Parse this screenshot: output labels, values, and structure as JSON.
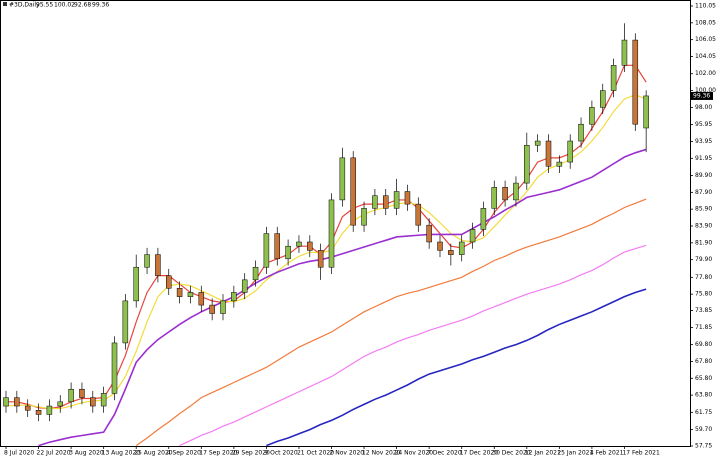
{
  "chart_data": {
    "type": "candlestick",
    "symbol": "#3D,Daily",
    "categories": [
      "8 Jul 2020",
      null,
      null,
      "22 Jul 2020",
      null,
      null,
      "3 Aug 2020",
      null,
      null,
      "13 Aug 2020",
      null,
      null,
      "25 Aug 2020",
      null,
      null,
      "4 Sep 2020",
      null,
      null,
      "17 Sep 2020",
      null,
      null,
      "29 Sep 2020",
      null,
      null,
      "9 Oct 2020",
      null,
      null,
      "21 Oct 2020",
      null,
      null,
      "2 Nov 2020",
      null,
      null,
      "12 Nov 2020",
      null,
      null,
      "24 Nov 2020",
      null,
      null,
      "7 Dec 2020",
      null,
      null,
      "17 Dec 2020",
      null,
      null,
      "30 Dec 2020",
      null,
      null,
      "12 Jan 2021",
      null,
      null,
      "25 Jan 2021",
      null,
      null,
      "4 Feb 2021",
      null,
      null,
      "17 Feb 2021",
      null,
      null
    ],
    "candles": {
      "open": [
        62.5,
        63.5,
        62.5,
        62,
        61.5,
        62.5,
        63,
        64.5,
        63.5,
        62.5,
        64,
        70,
        75,
        79,
        80.5,
        78,
        76.5,
        75.5,
        76,
        74.5,
        73.5,
        75,
        76,
        77.5,
        79,
        83,
        80,
        81.5,
        82,
        81,
        79,
        87,
        92,
        84,
        86,
        87.5,
        86,
        88,
        86.5,
        84,
        82,
        81,
        80.5,
        82,
        83.5,
        86,
        88.5,
        87,
        89,
        93.5,
        94,
        91,
        91.5,
        94,
        96,
        98,
        100,
        103,
        106,
        95.55
      ],
      "high": [
        64.3,
        64.3,
        63.3,
        62.8,
        63.3,
        63.8,
        65.3,
        65.3,
        64.3,
        64.8,
        70.8,
        75.8,
        80.5,
        81.3,
        81.3,
        78.8,
        77.3,
        76.8,
        76.8,
        75.3,
        75.8,
        76.8,
        78.3,
        79.8,
        83.8,
        83.8,
        82.3,
        82.8,
        82.8,
        81.8,
        87.8,
        93.2,
        92.8,
        86.8,
        88.3,
        88.3,
        89.5,
        88.8,
        87.3,
        84.8,
        82.8,
        81.8,
        82.8,
        84.3,
        86.8,
        89.3,
        89.3,
        89.8,
        95,
        94.8,
        94.8,
        92.3,
        94.8,
        96.8,
        98.8,
        100.8,
        103.8,
        108,
        106.8,
        100.02
      ],
      "low": [
        61.7,
        61.7,
        61.2,
        60.7,
        60.7,
        61.7,
        62.2,
        62.7,
        61.7,
        61.7,
        63.2,
        69.2,
        74.2,
        78.2,
        77.2,
        75.7,
        74.7,
        74.7,
        73.7,
        72.7,
        72.7,
        74.2,
        75.2,
        76.7,
        78.2,
        79.2,
        79.2,
        80.7,
        80.2,
        77.5,
        78.2,
        86.2,
        83.2,
        83.2,
        85.2,
        85.2,
        85.2,
        85.7,
        83.2,
        81.2,
        80.2,
        79.2,
        79.7,
        81.2,
        82.7,
        85.2,
        86.2,
        86.2,
        88.2,
        92.7,
        90.2,
        90.2,
        90.7,
        93.2,
        95.2,
        97.2,
        99.2,
        102.2,
        95.2,
        92.68
      ],
      "close": [
        63.5,
        62.5,
        62,
        61.5,
        62.5,
        63,
        64.5,
        63.5,
        62.5,
        64,
        70,
        75,
        79,
        80.5,
        78,
        76.5,
        75.5,
        76,
        74.5,
        73.5,
        75,
        76,
        77.5,
        79,
        83,
        80,
        81.5,
        82,
        81,
        79,
        87,
        92,
        84,
        86,
        87.5,
        86,
        88,
        86.5,
        84,
        82,
        81,
        80.5,
        82,
        83.5,
        86,
        88.5,
        87,
        89,
        93.5,
        94,
        91,
        91.5,
        94,
        96,
        98,
        100,
        103,
        106,
        96,
        99.36
      ],
      "up_color": "#8fc04f",
      "down_color": "#c8753a"
    },
    "series": [
      {
        "color": "#e8443c",
        "values": [
          63,
          63,
          62.7,
          62.3,
          62.2,
          62.4,
          63,
          63.4,
          63.4,
          63.5,
          65.5,
          68.5,
          72.5,
          76,
          78,
          78,
          77,
          76,
          75.5,
          75,
          74.8,
          75,
          76,
          77.5,
          79.5,
          80,
          80.5,
          81.5,
          81.5,
          80.5,
          82,
          85,
          86,
          86.5,
          86.5,
          86.5,
          87,
          87,
          86,
          84.5,
          83,
          81.5,
          81.3,
          82,
          83.5,
          85.5,
          87,
          88,
          89.5,
          91.5,
          92,
          92,
          92.5,
          93.5,
          95.5,
          97.5,
          100,
          103,
          103,
          101
        ]
      },
      {
        "color": "#f2dc3c",
        "values": [
          62.5,
          62.6,
          62.6,
          62.4,
          62.2,
          62.2,
          62.5,
          62.9,
          63.1,
          63.2,
          64,
          66,
          69,
          72.5,
          75.5,
          76.8,
          77,
          76.8,
          76.2,
          75.6,
          75,
          74.9,
          75.3,
          76.2,
          77.5,
          78.5,
          79.5,
          80.3,
          80.8,
          80.7,
          81,
          83,
          84.5,
          85.3,
          85.8,
          86.1,
          86.5,
          86.7,
          86.4,
          85.5,
          84.3,
          83,
          82.2,
          82,
          82.5,
          83.8,
          85.2,
          86.5,
          88,
          89.7,
          90.7,
          91.2,
          91.8,
          92.7,
          94,
          95.6,
          97.5,
          99,
          99.5,
          99
        ]
      },
      {
        "color": "#9a2fd0",
        "values": [
          null,
          null,
          null,
          57.8,
          58.2,
          58.5,
          58.8,
          59,
          59.2,
          59.4,
          61.5,
          64.5,
          67.7,
          69.2,
          70.4,
          71.3,
          72.2,
          73,
          73.7,
          74.3,
          74.9,
          75.5,
          76.3,
          77.1,
          77.8,
          78.4,
          78.9,
          79.4,
          79.7,
          79.9,
          80.2,
          80.6,
          81,
          81.4,
          81.8,
          82.2,
          82.6,
          82.7,
          82.8,
          82.9,
          82.9,
          82.9,
          82.9,
          83.6,
          84.3,
          85,
          85.8,
          86.5,
          87.3,
          87.6,
          87.9,
          88.2,
          88.7,
          89.2,
          89.7,
          90.5,
          91.3,
          92.1,
          92.6,
          93
        ]
      },
      {
        "color": "#f27a3a",
        "values": [
          null,
          null,
          null,
          null,
          null,
          null,
          null,
          null,
          null,
          null,
          null,
          null,
          57.8,
          58.7,
          59.7,
          60.6,
          61.6,
          62.5,
          63.5,
          64.1,
          64.7,
          65.3,
          65.9,
          66.5,
          67.1,
          67.9,
          68.7,
          69.5,
          70.1,
          70.7,
          71.3,
          72.1,
          72.9,
          73.7,
          74.3,
          74.9,
          75.5,
          75.9,
          76.2,
          76.6,
          77,
          77.4,
          77.8,
          78.5,
          79.1,
          79.8,
          80.3,
          80.9,
          81.4,
          81.8,
          82.2,
          82.6,
          83.1,
          83.6,
          84.1,
          84.8,
          85.4,
          86.1,
          86.6,
          87.1
        ]
      },
      {
        "color": "#f47cf4",
        "values": [
          null,
          null,
          null,
          null,
          null,
          null,
          null,
          null,
          null,
          null,
          null,
          null,
          null,
          null,
          null,
          null,
          57.8,
          58.4,
          59,
          59.5,
          60.1,
          60.6,
          61.2,
          61.8,
          62.4,
          63,
          63.6,
          64.2,
          64.8,
          65.4,
          66,
          66.8,
          67.6,
          68.4,
          69,
          69.5,
          70.1,
          70.6,
          71,
          71.5,
          71.9,
          72.3,
          72.7,
          73.2,
          73.8,
          74.3,
          74.8,
          75.3,
          75.8,
          76.2,
          76.6,
          77,
          77.5,
          78.1,
          78.6,
          79.3,
          80.1,
          80.8,
          81.2,
          81.6
        ]
      },
      {
        "color": "#2626c0",
        "values": [
          null,
          null,
          null,
          null,
          null,
          null,
          null,
          null,
          null,
          null,
          null,
          null,
          null,
          null,
          null,
          null,
          null,
          null,
          null,
          null,
          null,
          null,
          null,
          null,
          57.8,
          58.3,
          58.7,
          59.2,
          59.7,
          60.3,
          60.8,
          61.4,
          62.1,
          62.7,
          63.3,
          63.8,
          64.4,
          65,
          65.7,
          66.3,
          66.7,
          67.1,
          67.5,
          68,
          68.4,
          68.9,
          69.4,
          69.8,
          70.3,
          70.9,
          71.6,
          72.2,
          72.7,
          73.2,
          73.7,
          74.3,
          74.9,
          75.5,
          76,
          76.4
        ]
      }
    ],
    "ylim": [
      57.75,
      110.05
    ],
    "yticks": [
      110.05,
      108.05,
      106.05,
      104.05,
      {
        "value": 102,
        "label": "102.00"
      },
      {
        "value": 100,
        "label": "100.00"
      },
      {
        "value": 98,
        "label": "98.00"
      },
      95.95,
      93.95,
      91.95,
      {
        "value": 89.9,
        "label": "89.90"
      },
      {
        "value": 87.9,
        "label": "87.90"
      },
      {
        "value": 85.9,
        "label": "85.90"
      },
      {
        "value": 83.9,
        "label": "83.90"
      },
      {
        "value": 81.9,
        "label": "81.90"
      },
      {
        "value": 79.9,
        "label": "79.90"
      },
      {
        "value": 77.8,
        "label": "77.80"
      },
      {
        "value": 75.8,
        "label": "75.80"
      },
      73.85,
      71.85,
      {
        "value": 69.8,
        "label": "69.80"
      },
      {
        "value": 67.8,
        "label": "67.80"
      },
      {
        "value": 65.8,
        "label": "65.80"
      },
      {
        "value": 63.8,
        "label": "63.80"
      },
      61.75,
      {
        "value": 59.7,
        "label": "59.70"
      },
      57.75
    ]
  }
}
